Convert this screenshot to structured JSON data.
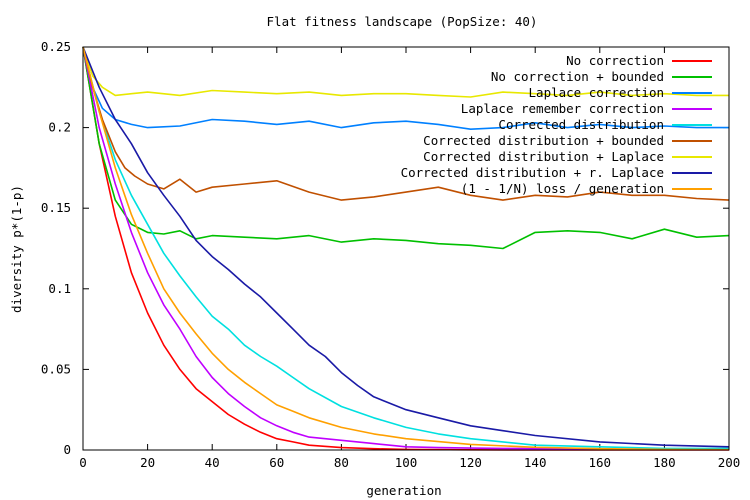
{
  "chart_data": {
    "type": "line",
    "title": "Flat fitness landscape (PopSize: 40)",
    "xlabel": "generation",
    "ylabel": "diversity p*(1-p)",
    "xlim": [
      0,
      200
    ],
    "ylim": [
      0,
      0.25
    ],
    "xticks": [
      "0",
      "20",
      "40",
      "60",
      "80",
      "100",
      "120",
      "140",
      "160",
      "180",
      "200"
    ],
    "yticks": [
      "0",
      "0.05",
      "0.1",
      "0.15",
      "0.2",
      "0.25"
    ],
    "grid": false,
    "legend_position": "top-right",
    "series": [
      {
        "name": "No correction",
        "color": "#ff0000",
        "x": [
          0,
          5,
          10,
          15,
          20,
          25,
          30,
          35,
          40,
          45,
          50,
          55,
          60,
          65,
          70,
          80,
          90,
          100,
          120,
          140,
          160,
          180,
          200
        ],
        "y": [
          0.25,
          0.19,
          0.145,
          0.11,
          0.085,
          0.065,
          0.05,
          0.038,
          0.03,
          0.022,
          0.016,
          0.011,
          0.007,
          0.005,
          0.003,
          0.0015,
          0.0008,
          0.0004,
          0.0001,
          0,
          0,
          0,
          0
        ]
      },
      {
        "name": "No correction + bounded",
        "color": "#00c000",
        "x": [
          0,
          5,
          10,
          15,
          20,
          25,
          30,
          35,
          40,
          50,
          60,
          70,
          80,
          90,
          100,
          110,
          120,
          130,
          140,
          150,
          160,
          170,
          180,
          190,
          200
        ],
        "y": [
          0.25,
          0.19,
          0.155,
          0.14,
          0.135,
          0.134,
          0.136,
          0.131,
          0.133,
          0.132,
          0.131,
          0.133,
          0.129,
          0.131,
          0.13,
          0.128,
          0.127,
          0.125,
          0.135,
          0.136,
          0.135,
          0.131,
          0.137,
          0.132,
          0.133
        ]
      },
      {
        "name": "Laplace correction",
        "color": "#0080ff",
        "x": [
          0,
          3,
          6,
          10,
          15,
          20,
          30,
          40,
          50,
          60,
          70,
          80,
          90,
          100,
          110,
          120,
          130,
          140,
          150,
          160,
          170,
          180,
          190,
          200
        ],
        "y": [
          0.25,
          0.225,
          0.212,
          0.205,
          0.202,
          0.2,
          0.201,
          0.205,
          0.204,
          0.202,
          0.204,
          0.2,
          0.203,
          0.204,
          0.202,
          0.199,
          0.2,
          0.203,
          0.2,
          0.202,
          0.2,
          0.201,
          0.2,
          0.2
        ]
      },
      {
        "name": "Laplace remember correction",
        "color": "#c000ff",
        "x": [
          0,
          5,
          10,
          15,
          20,
          25,
          30,
          35,
          40,
          45,
          50,
          55,
          60,
          65,
          70,
          80,
          90,
          100,
          110,
          120,
          130,
          140,
          160,
          180,
          200
        ],
        "y": [
          0.25,
          0.2,
          0.165,
          0.135,
          0.11,
          0.09,
          0.075,
          0.058,
          0.045,
          0.035,
          0.027,
          0.02,
          0.015,
          0.011,
          0.008,
          0.006,
          0.004,
          0.002,
          0.0015,
          0.0012,
          0.001,
          0.0008,
          0.0005,
          0.0003,
          0.0002
        ]
      },
      {
        "name": "Corrected distribution",
        "color": "#00e0e0",
        "x": [
          0,
          5,
          10,
          15,
          20,
          25,
          30,
          35,
          40,
          45,
          50,
          55,
          60,
          65,
          70,
          80,
          90,
          100,
          110,
          120,
          130,
          140,
          160,
          180,
          200
        ],
        "y": [
          0.25,
          0.21,
          0.18,
          0.158,
          0.14,
          0.122,
          0.108,
          0.095,
          0.083,
          0.075,
          0.065,
          0.058,
          0.052,
          0.045,
          0.038,
          0.027,
          0.02,
          0.014,
          0.01,
          0.007,
          0.005,
          0.003,
          0.002,
          0.001,
          0.001
        ]
      },
      {
        "name": "Corrected distribution + bounded",
        "color": "#c05000",
        "x": [
          0,
          3,
          6,
          10,
          13,
          16,
          20,
          25,
          30,
          35,
          40,
          50,
          60,
          70,
          80,
          90,
          100,
          110,
          120,
          130,
          140,
          150,
          160,
          170,
          180,
          190,
          200
        ],
        "y": [
          0.25,
          0.225,
          0.205,
          0.185,
          0.175,
          0.17,
          0.165,
          0.162,
          0.168,
          0.16,
          0.163,
          0.165,
          0.167,
          0.16,
          0.155,
          0.157,
          0.16,
          0.163,
          0.158,
          0.155,
          0.158,
          0.157,
          0.16,
          0.158,
          0.158,
          0.156,
          0.155
        ]
      },
      {
        "name": "Corrected distribution + Laplace",
        "color": "#e8e800",
        "x": [
          0,
          3,
          6,
          10,
          15,
          20,
          30,
          40,
          50,
          60,
          70,
          80,
          90,
          100,
          110,
          120,
          130,
          140,
          150,
          160,
          170,
          180,
          190,
          200
        ],
        "y": [
          0.25,
          0.232,
          0.225,
          0.22,
          0.221,
          0.222,
          0.22,
          0.223,
          0.222,
          0.221,
          0.222,
          0.22,
          0.221,
          0.221,
          0.22,
          0.219,
          0.222,
          0.221,
          0.22,
          0.222,
          0.22,
          0.221,
          0.22,
          0.22
        ]
      },
      {
        "name": "Corrected distribution + r. Laplace",
        "color": "#1a1aa6",
        "x": [
          0,
          5,
          10,
          15,
          20,
          25,
          30,
          35,
          40,
          45,
          50,
          55,
          60,
          65,
          70,
          75,
          80,
          85,
          90,
          100,
          110,
          120,
          130,
          140,
          160,
          180,
          200
        ],
        "y": [
          0.25,
          0.225,
          0.205,
          0.19,
          0.172,
          0.158,
          0.145,
          0.13,
          0.12,
          0.112,
          0.103,
          0.095,
          0.085,
          0.075,
          0.065,
          0.058,
          0.048,
          0.04,
          0.033,
          0.025,
          0.02,
          0.015,
          0.012,
          0.009,
          0.005,
          0.003,
          0.002
        ]
      },
      {
        "name": "(1 - 1/N) loss / generation",
        "color": "#ffa000",
        "x": [
          0,
          5,
          10,
          15,
          20,
          25,
          30,
          35,
          40,
          45,
          50,
          55,
          60,
          65,
          70,
          80,
          90,
          100,
          120,
          140,
          160,
          180,
          200
        ],
        "y": [
          0.25,
          0.21,
          0.175,
          0.146,
          0.122,
          0.1,
          0.085,
          0.072,
          0.06,
          0.05,
          0.042,
          0.035,
          0.028,
          0.024,
          0.02,
          0.014,
          0.01,
          0.007,
          0.0035,
          0.0017,
          0.0008,
          0.0004,
          0.0002
        ]
      }
    ]
  }
}
